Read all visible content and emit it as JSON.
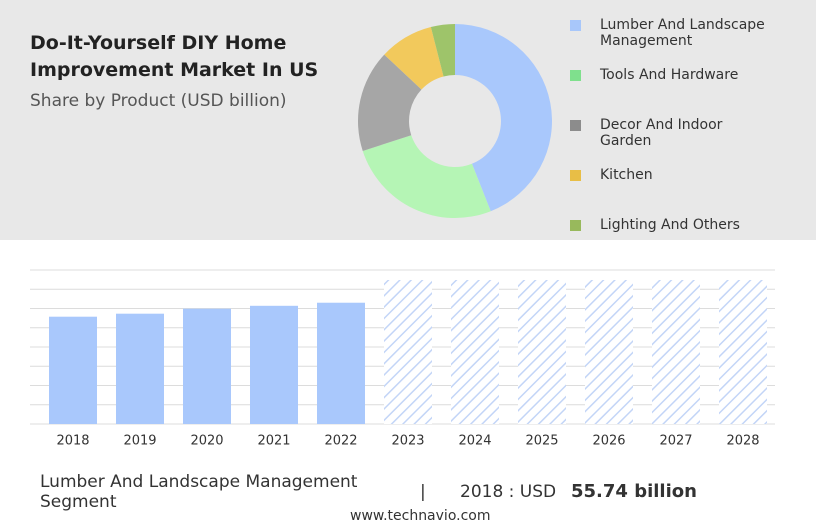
{
  "chart_data": [
    {
      "type": "donut",
      "title": "Do-It-Yourself DIY Home Improvement Market In US",
      "subtitle": "Share by Product (USD billion)",
      "categories": [
        "Lumber And Landscape Management",
        "Tools And Hardware",
        "Decor And Indoor Garden",
        "Kitchen",
        "Lighting And Others"
      ],
      "values": [
        44,
        26,
        17,
        9,
        4
      ],
      "colors": [
        "#a9c8fc",
        "#b5f5b5",
        "#a6a6a6",
        "#f2c95c",
        "#9ec46a"
      ],
      "legend_colors": [
        "#a8c7fa",
        "#7fe08d",
        "#8c8c8c",
        "#e8be46",
        "#98b95c"
      ]
    },
    {
      "type": "bar",
      "categories": [
        "2018",
        "2019",
        "2020",
        "2021",
        "2022",
        "2023",
        "2024",
        "2025",
        "2026",
        "2027",
        "2028"
      ],
      "values": [
        55.74,
        57.3,
        59.9,
        61.4,
        63.0,
        null,
        null,
        null,
        null,
        null,
        null
      ],
      "color": "#a9c8fc",
      "ylim": [
        0,
        80
      ]
    }
  ],
  "footer": {
    "segment": "Lumber And Landscape Management Segment",
    "year_label": "2018 : USD",
    "value_label": "55.74 billion"
  },
  "source": "www.technavio.com"
}
